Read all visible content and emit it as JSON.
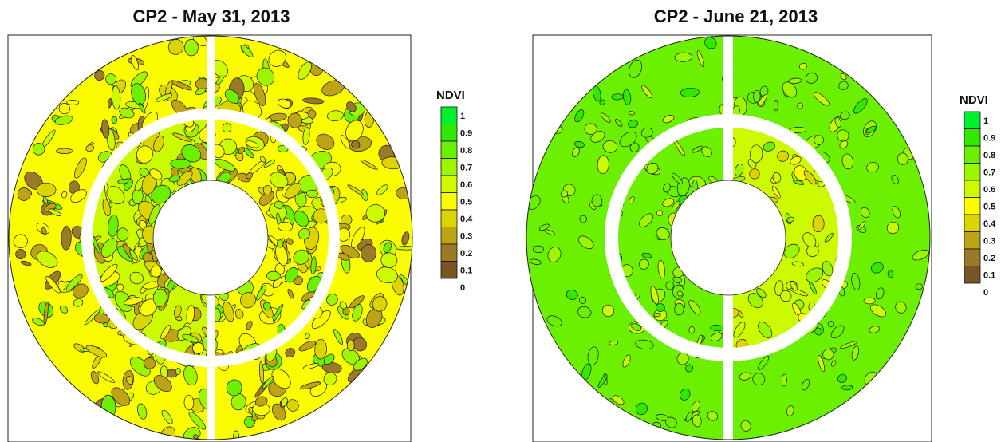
{
  "chart_data": [
    {
      "type": "heatmap",
      "title": "CP2 - May 31, 2013",
      "legend": {
        "title": "NDVI",
        "ticks": [
          "1",
          "0.9",
          "0.8",
          "0.7",
          "0.6",
          "0.5",
          "0.4",
          "0.3",
          "0.2",
          "0.1",
          "0"
        ],
        "placement": "right"
      },
      "zones": [
        {
          "label": "outer-ring",
          "ndvi_mean": 0.5,
          "ndvi_min": 0.2,
          "ndvi_max": 0.8
        },
        {
          "label": "inner-ring-left",
          "ndvi_mean": 0.55,
          "ndvi_min": 0.3,
          "ndvi_max": 0.8
        },
        {
          "label": "inner-ring-right",
          "ndvi_mean": 0.5,
          "ndvi_min": 0.3,
          "ndvi_max": 0.8
        }
      ]
    },
    {
      "type": "heatmap",
      "title": "CP2 - June 21, 2013",
      "legend": {
        "title": "NDVI",
        "ticks": [
          "1",
          "0.9",
          "0.8",
          "0.7",
          "0.6",
          "0.5",
          "0.4",
          "0.3",
          "0.2",
          "0.1",
          "0"
        ],
        "placement": "right"
      },
      "zones": [
        {
          "label": "outer-ring",
          "ndvi_mean": 0.75,
          "ndvi_min": 0.6,
          "ndvi_max": 0.9
        },
        {
          "label": "inner-ring-left",
          "ndvi_mean": 0.75,
          "ndvi_min": 0.6,
          "ndvi_max": 0.9
        },
        {
          "label": "inner-ring-right",
          "ndvi_mean": 0.6,
          "ndvi_min": 0.4,
          "ndvi_max": 0.8
        }
      ]
    }
  ],
  "palette": [
    "#5c2c22",
    "#7a5524",
    "#9a7a26",
    "#bfa317",
    "#dcd400",
    "#fcfc00",
    "#ccfa00",
    "#9cf600",
    "#6af000",
    "#30e800",
    "#00f030"
  ]
}
